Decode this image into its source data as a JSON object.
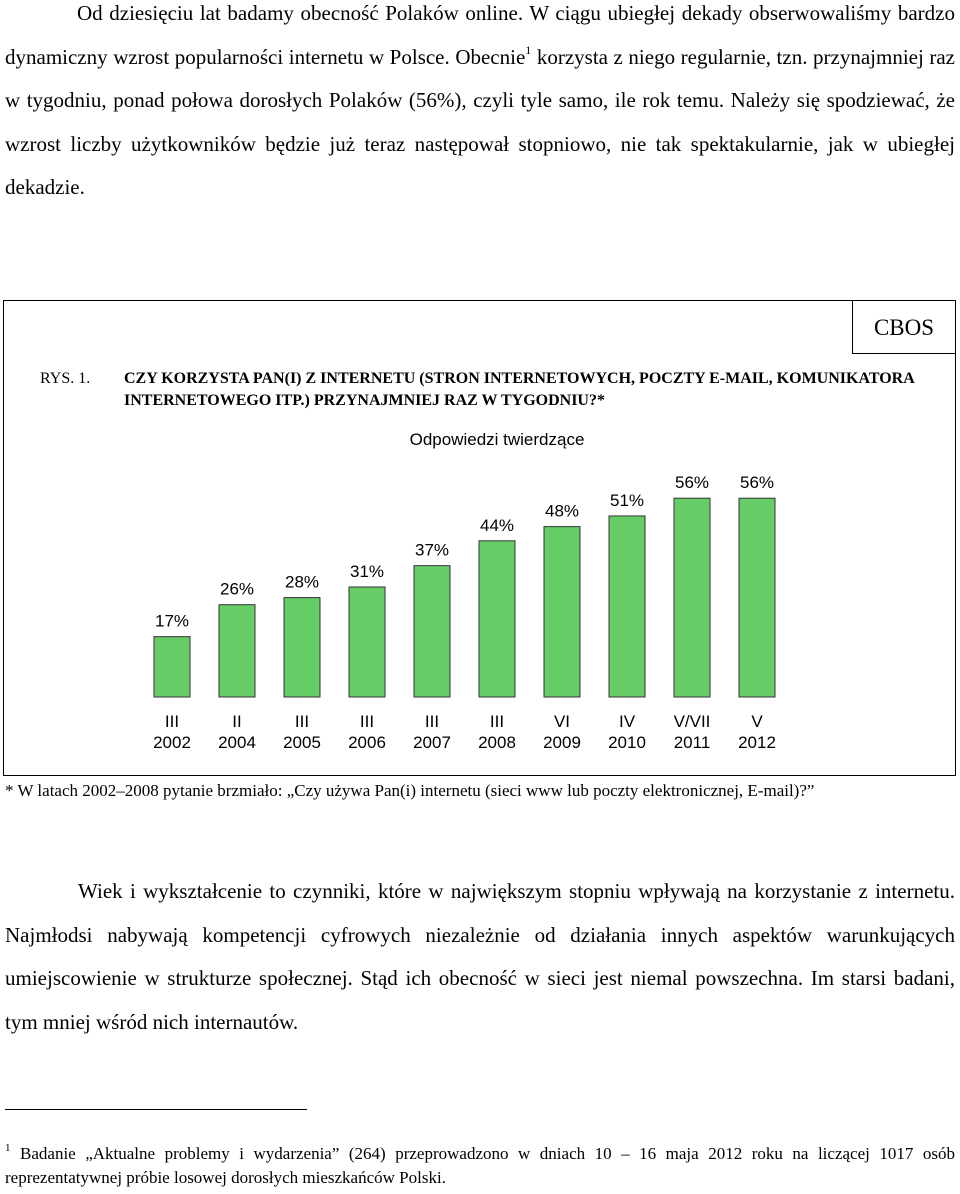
{
  "paragraph1": {
    "text_before_ref": "Od dziesięciu lat badamy obecność Polaków online. W ciągu ubiegłej dekady obserwowaliśmy bardzo dynamiczny wzrost popularności internetu w Polsce. Obecnie",
    "ref": "1",
    "text_after_ref": " korzysta z niego regularnie, tzn. przynajmniej raz w tygodniu, ponad połowa dorosłych Polaków (56%), czyli tyle samo, ile rok temu. Należy się spodziewać, że wzrost liczby użytkowników będzie już teraz następował stopniowo, nie tak spektakularnie, jak w ubiegłej dekadzie."
  },
  "figure": {
    "source_label": "CBOS",
    "number_label": "RYS. 1.",
    "question": "CZY KORZYSTA PAN(I) Z INTERNETU (STRON INTERNETOWYCH, POCZTY E-MAIL, KOMUNIKATORA INTERNETOWEGO ITP.) PRZYNAJMNIEJ RAZ W TYGODNIU?*"
  },
  "chart_data": {
    "type": "bar",
    "title": "Odpowiedzi twierdzące",
    "categories": [
      [
        "III",
        "2002"
      ],
      [
        "II",
        "2004"
      ],
      [
        "III",
        "2005"
      ],
      [
        "III",
        "2006"
      ],
      [
        "III",
        "2007"
      ],
      [
        "III",
        "2008"
      ],
      [
        "VI",
        "2009"
      ],
      [
        "IV",
        "2010"
      ],
      [
        "V/VII",
        "2011"
      ],
      [
        "V",
        "2012"
      ]
    ],
    "values": [
      17,
      26,
      28,
      31,
      37,
      44,
      48,
      51,
      56,
      56
    ],
    "value_labels": [
      "17%",
      "26%",
      "28%",
      "31%",
      "37%",
      "44%",
      "48%",
      "51%",
      "56%",
      "56%"
    ],
    "unit": "%",
    "bar_color": "#66cc66",
    "xlabel": "",
    "ylabel": "",
    "grid": false,
    "legend": "none"
  },
  "footnote_star": "* W latach 2002–2008 pytanie brzmiało: „Czy używa Pan(i) internetu (sieci www lub poczty elektronicznej, E-mail)?”",
  "paragraph2": "Wiek i wykształcenie to czynniki, które w największym stopniu wpływają na korzystanie z internetu. Najmłodsi nabywają kompetencji cyfrowych niezależnie od działania innych aspektów warunkujących umiejscowienie w strukturze społecznej. Stąd ich obecność w sieci jest niemal powszechna. Im starsi badani, tym mniej wśród nich internautów.",
  "footnote1": {
    "marker": "1",
    "text": " Badanie „Aktualne problemy i wydarzenia” (264) przeprowadzono w dniach 10 – 16 maja 2012 roku na liczącej 1017 osób reprezentatywnej próbie losowej dorosłych mieszkańców Polski."
  }
}
